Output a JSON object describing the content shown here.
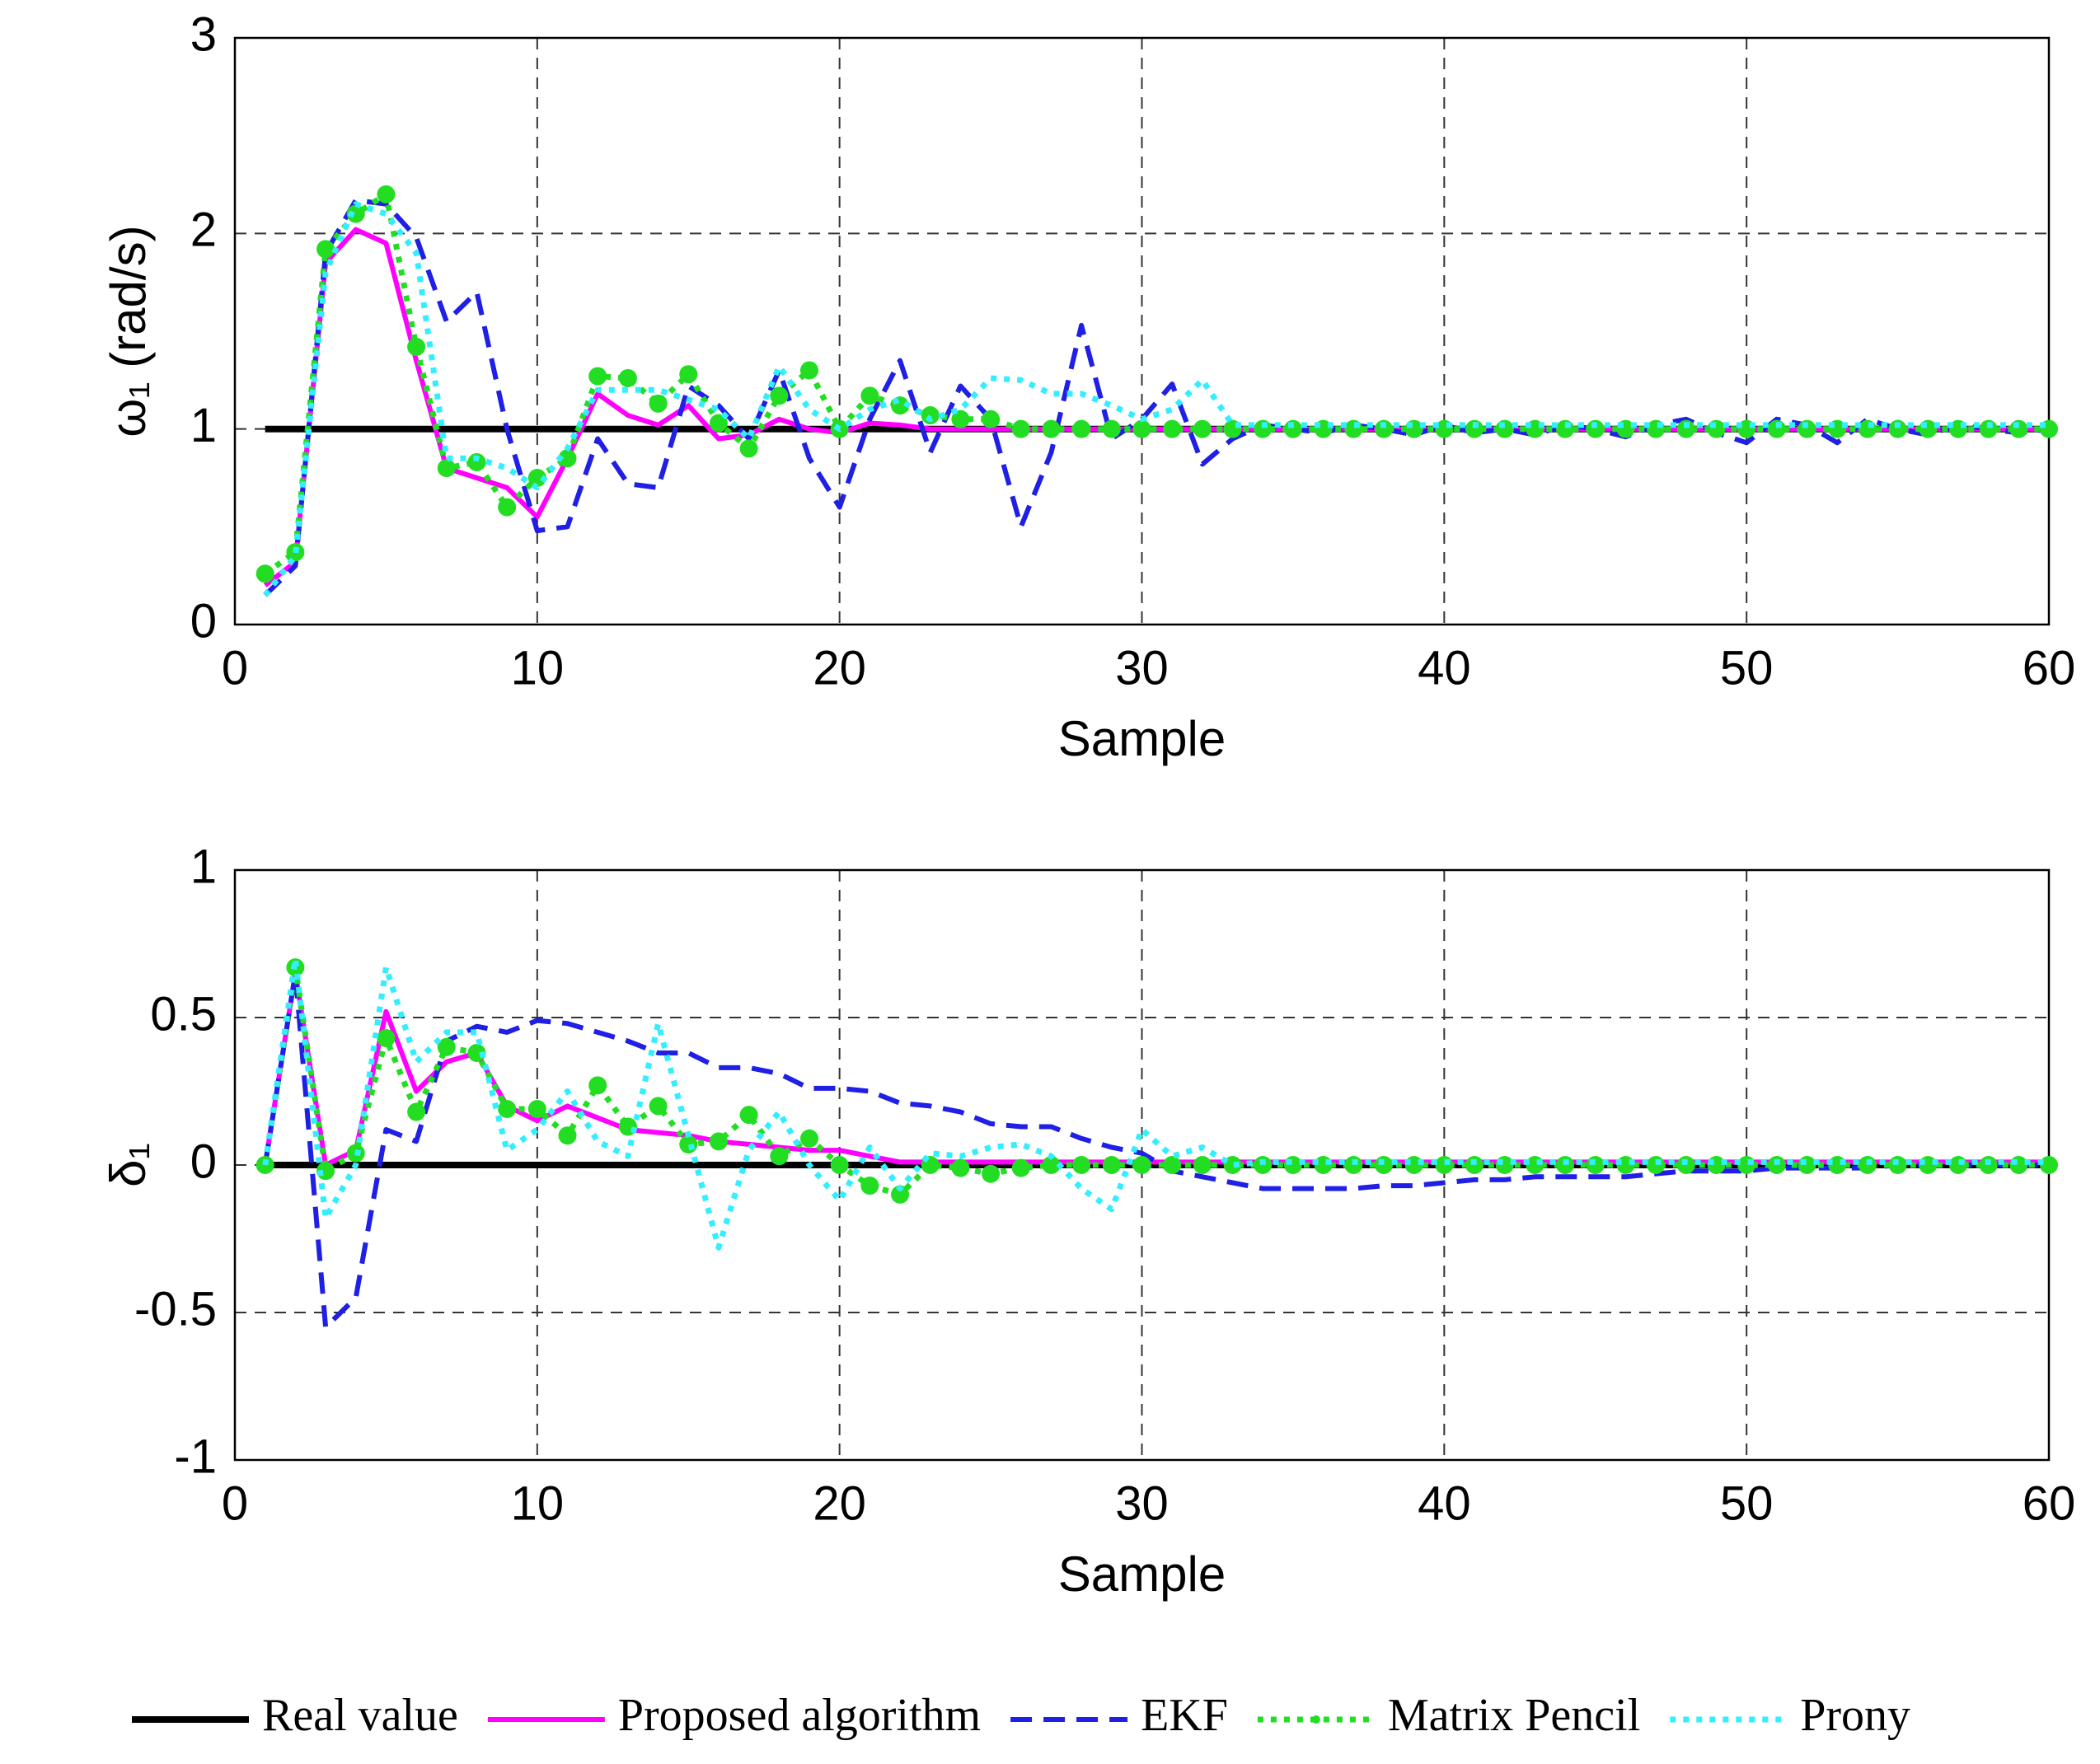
{
  "chart_data": [
    {
      "type": "line",
      "xlabel": "Sample",
      "ylabel": "ω₁ (rad/s)",
      "x": [
        1,
        2,
        3,
        4,
        5,
        6,
        7,
        8,
        9,
        10,
        11,
        12,
        13,
        14,
        15,
        16,
        17,
        18,
        19,
        20,
        21,
        22,
        23,
        24,
        25,
        26,
        27,
        28,
        29,
        30,
        31,
        32,
        33,
        34,
        35,
        36,
        37,
        38,
        39,
        40,
        41,
        42,
        43,
        44,
        45,
        46,
        47,
        48,
        49,
        50,
        51,
        52,
        53,
        54,
        55,
        56,
        57,
        58,
        59,
        60
      ],
      "xlim": [
        0,
        60
      ],
      "xticks": [
        0,
        10,
        20,
        30,
        40,
        50,
        60
      ],
      "ylim": [
        0,
        3
      ],
      "yticks": [
        0,
        1,
        2,
        3
      ],
      "grid": true,
      "legend": "bottom",
      "series": [
        {
          "name": "Real value",
          "color": "#000000",
          "linestyle": "solid",
          "values": [
            1,
            1,
            1,
            1,
            1,
            1,
            1,
            1,
            1,
            1,
            1,
            1,
            1,
            1,
            1,
            1,
            1,
            1,
            1,
            1,
            1,
            1,
            1,
            1,
            1,
            1,
            1,
            1,
            1,
            1,
            1,
            1,
            1,
            1,
            1,
            1,
            1,
            1,
            1,
            1,
            1,
            1,
            1,
            1,
            1,
            1,
            1,
            1,
            1,
            1,
            1,
            1,
            1,
            1,
            1,
            1,
            1,
            1,
            1,
            1
          ]
        },
        {
          "name": "Proposed algorithm",
          "color": "#ff00ff",
          "linestyle": "solid",
          "values": [
            0.2,
            0.32,
            1.85,
            2.02,
            1.95,
            1.35,
            0.8,
            0.75,
            0.7,
            0.55,
            0.85,
            1.18,
            1.07,
            1.02,
            1.12,
            0.95,
            0.97,
            1.05,
            1.0,
            0.98,
            1.03,
            1.02,
            1,
            1,
            1,
            1,
            1,
            1,
            1,
            1,
            1,
            1,
            1,
            1,
            1,
            1,
            1,
            1,
            1,
            1,
            1,
            1,
            1,
            1,
            1,
            1,
            1,
            1,
            1,
            1,
            1,
            1,
            1,
            1,
            1,
            1,
            1,
            1,
            1,
            1
          ]
        },
        {
          "name": "EKF",
          "color": "#1f1fe6",
          "linestyle": "dashed",
          "values": [
            0.15,
            0.3,
            1.9,
            2.17,
            2.15,
            1.98,
            1.55,
            1.7,
            1.0,
            0.48,
            0.5,
            0.95,
            0.72,
            0.7,
            1.22,
            1.12,
            0.95,
            1.3,
            0.85,
            0.6,
            1.05,
            1.35,
            0.88,
            1.22,
            1.05,
            0.5,
            0.88,
            1.53,
            0.95,
            1.05,
            1.23,
            0.82,
            0.95,
            1.02,
            1.0,
            0.98,
            1.02,
            1.0,
            0.97,
            1.02,
            0.98,
            1.0,
            0.97,
            1.02,
            1.0,
            0.96,
            1.02,
            1.05,
            0.98,
            0.93,
            1.05,
            1.02,
            0.93,
            1.05,
            1.0,
            0.97,
            1.02,
            1.0,
            0.98,
            1.0
          ]
        },
        {
          "name": "Matrix Pencil",
          "color": "#22dd22",
          "linestyle": "dotted",
          "marker": "circle",
          "values": [
            0.26,
            0.37,
            1.92,
            2.1,
            2.2,
            1.42,
            0.8,
            0.83,
            0.6,
            0.75,
            0.85,
            1.27,
            1.26,
            1.13,
            1.28,
            1.03,
            0.9,
            1.17,
            1.3,
            1.0,
            1.17,
            1.12,
            1.07,
            1.05,
            1.05,
            1.0,
            1,
            1,
            1,
            1,
            1,
            1,
            1,
            1,
            1,
            1,
            1,
            1,
            1,
            1,
            1,
            1,
            1,
            1,
            1,
            1,
            1,
            1,
            1,
            1,
            1,
            1,
            1,
            1,
            1,
            1,
            1,
            1,
            1,
            1
          ]
        },
        {
          "name": "Prony",
          "color": "#33eeff",
          "linestyle": "dotted",
          "values": [
            0.15,
            0.35,
            1.8,
            2.15,
            2.1,
            1.9,
            0.85,
            0.85,
            0.8,
            0.7,
            0.9,
            1.2,
            1.2,
            1.2,
            1.15,
            1.1,
            0.95,
            1.32,
            1.1,
            1.0,
            1.1,
            1.15,
            1.05,
            1.1,
            1.26,
            1.25,
            1.18,
            1.18,
            1.12,
            1.05,
            1.1,
            1.25,
            1.02,
            1.02,
            1.02,
            1.02,
            1.02,
            1.02,
            1.02,
            1.02,
            1.02,
            1.02,
            1.02,
            1.02,
            1.02,
            1.02,
            1.02,
            1.02,
            1.02,
            1.02,
            1.02,
            1.02,
            1.02,
            1.02,
            1.02,
            1.02,
            1.02,
            1.02,
            1.02,
            1.02
          ]
        }
      ]
    },
    {
      "type": "line",
      "xlabel": "Sample",
      "ylabel": "δ₁",
      "x": [
        1,
        2,
        3,
        4,
        5,
        6,
        7,
        8,
        9,
        10,
        11,
        12,
        13,
        14,
        15,
        16,
        17,
        18,
        19,
        20,
        21,
        22,
        23,
        24,
        25,
        26,
        27,
        28,
        29,
        30,
        31,
        32,
        33,
        34,
        35,
        36,
        37,
        38,
        39,
        40,
        41,
        42,
        43,
        44,
        45,
        46,
        47,
        48,
        49,
        50,
        51,
        52,
        53,
        54,
        55,
        56,
        57,
        58,
        59,
        60
      ],
      "xlim": [
        0,
        60
      ],
      "xticks": [
        0,
        10,
        20,
        30,
        40,
        50,
        60
      ],
      "ylim": [
        -1,
        1
      ],
      "yticks": [
        -1,
        -0.5,
        0,
        0.5,
        1
      ],
      "grid": true,
      "series": [
        {
          "color": "#000000",
          "linestyle": "solid",
          "values": [
            0,
            0,
            0,
            0,
            0,
            0,
            0,
            0,
            0,
            0,
            0,
            0,
            0,
            0,
            0,
            0,
            0,
            0,
            0,
            0,
            0,
            0,
            0,
            0,
            0,
            0,
            0,
            0,
            0,
            0,
            0,
            0,
            0,
            0,
            0,
            0,
            0,
            0,
            0,
            0,
            0,
            0,
            0,
            0,
            0,
            0,
            0,
            0,
            0,
            0,
            0,
            0,
            0,
            0,
            0,
            0,
            0,
            0,
            0,
            0
          ]
        },
        {
          "color": "#ff00ff",
          "linestyle": "solid",
          "values": [
            0,
            0.65,
            0,
            0.05,
            0.52,
            0.25,
            0.35,
            0.38,
            0.2,
            0.15,
            0.2,
            0.16,
            0.12,
            0.11,
            0.1,
            0.08,
            0.07,
            0.06,
            0.05,
            0.05,
            0.03,
            0.01,
            0.01,
            0.01,
            0.01,
            0.01,
            0.01,
            0.01,
            0.01,
            0.01,
            0.01,
            0.01,
            0.01,
            0.01,
            0.01,
            0.01,
            0.01,
            0.01,
            0.01,
            0.01,
            0.01,
            0.01,
            0.01,
            0.01,
            0.01,
            0.01,
            0.01,
            0.01,
            0.01,
            0.01,
            0.01,
            0.01,
            0.01,
            0.01,
            0.01,
            0.01,
            0.01,
            0.01,
            0.01,
            0.01
          ]
        },
        {
          "color": "#1f1fe6",
          "linestyle": "dashed",
          "values": [
            0,
            0.65,
            -0.55,
            -0.45,
            0.12,
            0.08,
            0.42,
            0.47,
            0.45,
            0.49,
            0.48,
            0.45,
            0.42,
            0.38,
            0.38,
            0.33,
            0.33,
            0.31,
            0.26,
            0.26,
            0.25,
            0.21,
            0.2,
            0.18,
            0.14,
            0.13,
            0.13,
            0.09,
            0.06,
            0.04,
            -0.02,
            -0.04,
            -0.06,
            -0.08,
            -0.08,
            -0.08,
            -0.08,
            -0.07,
            -0.07,
            -0.06,
            -0.05,
            -0.05,
            -0.04,
            -0.04,
            -0.04,
            -0.04,
            -0.03,
            -0.02,
            -0.02,
            -0.02,
            -0.01,
            -0.01,
            -0.01,
            -0.01,
            0,
            0,
            0,
            0,
            0,
            0
          ]
        },
        {
          "color": "#22dd22",
          "linestyle": "dotted",
          "marker": "circle",
          "values": [
            0,
            0.67,
            -0.02,
            0.04,
            0.43,
            0.18,
            0.4,
            0.38,
            0.19,
            0.19,
            0.1,
            0.27,
            0.13,
            0.2,
            0.07,
            0.08,
            0.17,
            0.03,
            0.09,
            0,
            -0.07,
            -0.1,
            0,
            -0.01,
            -0.03,
            -0.01,
            0,
            0,
            0,
            0,
            0,
            0,
            0,
            0,
            0,
            0,
            0,
            0,
            0,
            0,
            0,
            0,
            0,
            0,
            0,
            0,
            0,
            0,
            0,
            0,
            0,
            0,
            0,
            0,
            0,
            0,
            0,
            0,
            0,
            0
          ]
        },
        {
          "color": "#33eeff",
          "linestyle": "dotted",
          "values": [
            0,
            0.7,
            -0.18,
            0,
            0.67,
            0.35,
            0.45,
            0.45,
            0.05,
            0.12,
            0.25,
            0.08,
            0.03,
            0.48,
            0.1,
            -0.28,
            0.05,
            0.18,
            0,
            -0.12,
            0.06,
            -0.08,
            0.04,
            0.03,
            0.06,
            0.07,
            0.03,
            -0.08,
            -0.15,
            0.12,
            0.03,
            0.06,
            0,
            0.01,
            0.01,
            0.01,
            0.01,
            0.01,
            0.01,
            0.01,
            0.01,
            0.01,
            0.01,
            0.01,
            0.01,
            0.01,
            0.01,
            0.01,
            0.01,
            0.01,
            0.01,
            0.01,
            0.01,
            0.01,
            0.01,
            0.01,
            0.01,
            0.01,
            0.01,
            0.01
          ]
        }
      ]
    }
  ]
}
